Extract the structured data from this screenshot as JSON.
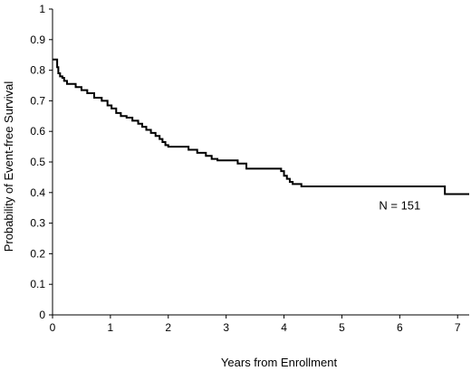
{
  "chart_data": {
    "type": "line",
    "title": "",
    "xlabel": "Years from Enrollment",
    "ylabel": "Probability of Event-free Survival",
    "xlim": [
      0,
      7.2
    ],
    "ylim": [
      0,
      1
    ],
    "xticks": [
      0,
      1,
      2,
      3,
      4,
      5,
      6,
      7
    ],
    "yticks": [
      0,
      0.1,
      0.2,
      0.3,
      0.4,
      0.5,
      0.6,
      0.7,
      0.8,
      0.9,
      1
    ],
    "grid": false,
    "legend": "none",
    "series": [
      {
        "name": "",
        "step": true,
        "x": [
          0,
          0.08,
          0.1,
          0.13,
          0.17,
          0.2,
          0.25,
          0.4,
          0.5,
          0.6,
          0.72,
          0.85,
          0.95,
          1.02,
          1.1,
          1.18,
          1.28,
          1.38,
          1.48,
          1.55,
          1.62,
          1.7,
          1.78,
          1.85,
          1.9,
          1.95,
          2.0,
          2.35,
          2.5,
          2.65,
          2.75,
          2.85,
          3.2,
          3.35,
          3.95,
          4.0,
          4.05,
          4.1,
          4.15,
          4.3,
          6.78,
          7.2
        ],
        "y": [
          0.835,
          0.81,
          0.79,
          0.78,
          0.775,
          0.765,
          0.755,
          0.745,
          0.735,
          0.725,
          0.71,
          0.7,
          0.685,
          0.675,
          0.66,
          0.65,
          0.645,
          0.635,
          0.625,
          0.615,
          0.605,
          0.595,
          0.585,
          0.575,
          0.565,
          0.555,
          0.55,
          0.54,
          0.53,
          0.52,
          0.51,
          0.505,
          0.495,
          0.478,
          0.47,
          0.455,
          0.445,
          0.435,
          0.428,
          0.42,
          0.395,
          0.395
        ]
      }
    ],
    "annotations": [
      {
        "text": "N = 151",
        "x": 6.0,
        "y": 0.345
      }
    ]
  }
}
